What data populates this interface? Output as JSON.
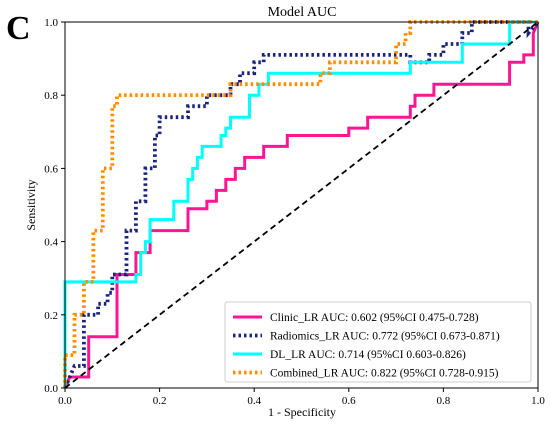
{
  "panel_letter": "C",
  "chart_data": {
    "type": "line",
    "title": "Model AUC",
    "xlabel": "1 - Specificity",
    "ylabel": "Sensitivity",
    "xlim": [
      0.0,
      1.0
    ],
    "ylim": [
      0.0,
      1.0
    ],
    "xticks": [
      "0.0",
      "0.2",
      "0.4",
      "0.6",
      "0.8",
      "1.0"
    ],
    "yticks": [
      "0.0",
      "0.2",
      "0.4",
      "0.6",
      "0.8",
      "1.0"
    ],
    "grid": false,
    "legend_position": "lower-right",
    "series": [
      {
        "name": "Clinic_LR AUC: 0.602 (95%CI 0.475-0.728)",
        "color": "#ff1493",
        "style": "solid",
        "x": [
          0.0,
          0.01,
          0.05,
          0.05,
          0.11,
          0.11,
          0.15,
          0.15,
          0.18,
          0.18,
          0.26,
          0.26,
          0.3,
          0.3,
          0.32,
          0.32,
          0.34,
          0.34,
          0.36,
          0.36,
          0.38,
          0.38,
          0.42,
          0.42,
          0.47,
          0.47,
          0.6,
          0.6,
          0.64,
          0.64,
          0.73,
          0.73,
          0.74,
          0.74,
          0.78,
          0.78,
          0.94,
          0.94,
          0.97,
          0.97,
          0.99,
          0.99,
          1.0
        ],
        "y": [
          0.0,
          0.03,
          0.03,
          0.14,
          0.14,
          0.31,
          0.31,
          0.37,
          0.37,
          0.43,
          0.43,
          0.49,
          0.49,
          0.51,
          0.51,
          0.54,
          0.54,
          0.57,
          0.57,
          0.6,
          0.6,
          0.63,
          0.63,
          0.66,
          0.66,
          0.69,
          0.69,
          0.71,
          0.71,
          0.74,
          0.74,
          0.77,
          0.77,
          0.8,
          0.8,
          0.83,
          0.83,
          0.89,
          0.89,
          0.91,
          0.91,
          0.97,
          1.0
        ]
      },
      {
        "name": "Radiomics_LR AUC: 0.772 (95%CI 0.673-0.871)",
        "color": "#1a237e",
        "style": "dotted",
        "x": [
          0.0,
          0.02,
          0.04,
          0.04,
          0.07,
          0.07,
          0.09,
          0.09,
          0.1,
          0.1,
          0.13,
          0.13,
          0.15,
          0.15,
          0.17,
          0.17,
          0.19,
          0.19,
          0.2,
          0.2,
          0.26,
          0.26,
          0.3,
          0.3,
          0.35,
          0.35,
          0.37,
          0.37,
          0.4,
          0.4,
          0.42,
          0.42,
          0.73,
          0.73,
          0.77,
          0.77,
          0.8,
          0.8,
          0.84,
          0.84,
          0.86,
          0.86,
          0.98,
          0.98,
          1.0
        ],
        "y": [
          0.0,
          0.06,
          0.06,
          0.2,
          0.2,
          0.23,
          0.23,
          0.26,
          0.26,
          0.31,
          0.31,
          0.43,
          0.43,
          0.51,
          0.51,
          0.6,
          0.6,
          0.69,
          0.69,
          0.74,
          0.74,
          0.77,
          0.77,
          0.8,
          0.8,
          0.83,
          0.83,
          0.86,
          0.86,
          0.89,
          0.89,
          0.91,
          0.91,
          0.89,
          0.89,
          0.91,
          0.91,
          0.94,
          0.94,
          0.97,
          0.97,
          1.0,
          1.0,
          0.97,
          1.0
        ]
      },
      {
        "name": "DL_LR AUC: 0.714 (95%CI 0.603-0.826)",
        "color": "#00ffff",
        "style": "solid",
        "x": [
          0.0,
          0.0,
          0.15,
          0.15,
          0.16,
          0.16,
          0.17,
          0.17,
          0.18,
          0.18,
          0.23,
          0.23,
          0.26,
          0.26,
          0.27,
          0.27,
          0.28,
          0.28,
          0.29,
          0.29,
          0.33,
          0.33,
          0.34,
          0.34,
          0.35,
          0.35,
          0.39,
          0.39,
          0.41,
          0.41,
          0.43,
          0.43,
          0.73,
          0.73,
          0.84,
          0.84,
          0.94,
          0.94,
          1.0,
          1.0
        ],
        "y": [
          0.0,
          0.29,
          0.29,
          0.31,
          0.31,
          0.37,
          0.37,
          0.4,
          0.4,
          0.46,
          0.46,
          0.51,
          0.51,
          0.57,
          0.57,
          0.6,
          0.6,
          0.63,
          0.63,
          0.66,
          0.66,
          0.69,
          0.69,
          0.71,
          0.71,
          0.74,
          0.74,
          0.8,
          0.8,
          0.83,
          0.83,
          0.86,
          0.86,
          0.89,
          0.89,
          0.94,
          0.94,
          1.0,
          1.0,
          1.0
        ]
      },
      {
        "name": "Combined_LR AUC: 0.822 (95%CI 0.728-0.915)",
        "color": "#ff8c00",
        "style": "dotted",
        "x": [
          0.0,
          0.0,
          0.02,
          0.02,
          0.04,
          0.04,
          0.06,
          0.06,
          0.08,
          0.08,
          0.1,
          0.1,
          0.11,
          0.11,
          0.35,
          0.35,
          0.37,
          0.37,
          0.54,
          0.54,
          0.56,
          0.56,
          0.67,
          0.67,
          0.7,
          0.7,
          0.72,
          0.72,
          0.73,
          0.73,
          1.0
        ],
        "y": [
          0.0,
          0.09,
          0.09,
          0.2,
          0.2,
          0.29,
          0.29,
          0.43,
          0.43,
          0.6,
          0.6,
          0.77,
          0.77,
          0.8,
          0.8,
          0.83,
          0.83,
          0.83,
          0.83,
          0.86,
          0.86,
          0.89,
          0.89,
          0.89,
          0.89,
          0.94,
          0.94,
          0.97,
          0.97,
          1.0,
          1.0
        ]
      },
      {
        "name": "",
        "color": "#000000",
        "style": "dashed",
        "x": [
          0.0,
          1.0
        ],
        "y": [
          0.0,
          1.0
        ]
      }
    ]
  }
}
